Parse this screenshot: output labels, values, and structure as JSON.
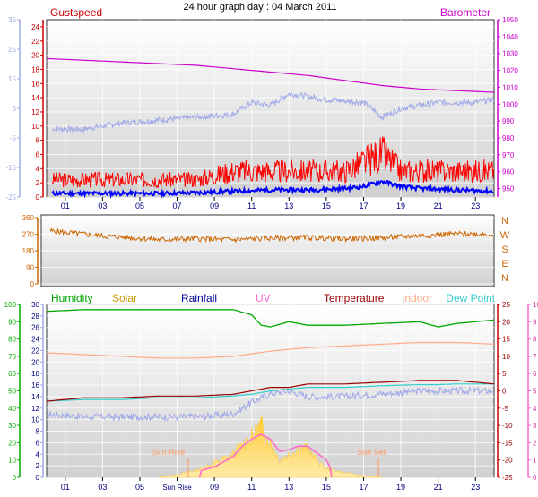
{
  "title": "24 hour graph day : 04 March 2011",
  "colors": {
    "gust": "#ff0000",
    "wind": "#0000ff",
    "barometer": "#cc00cc",
    "temperature_blue": "#a0a8e8",
    "direction": "#cc6600",
    "humidity": "#00aa00",
    "solar": "#ffcc33",
    "rainfall": "#000099",
    "uv": "#ff66cc",
    "temperature": "#990000",
    "indoor": "#ffaa88",
    "dew_point": "#33cccc",
    "axis_left": "#a0a8e8",
    "axis_red": "#cc0000",
    "sun_marker": "#ff9966"
  },
  "chart_data": [
    {
      "type": "line",
      "legend": [
        "Gustspeed",
        "Barometer"
      ],
      "x_ticks": [
        "01",
        "03",
        "05",
        "07",
        "09",
        "11",
        "13",
        "15",
        "17",
        "19",
        "21",
        "23"
      ],
      "left_outer_axis": {
        "ylim": [
          -25,
          35
        ],
        "ticks": [
          "35",
          "25",
          "15",
          "5",
          "-5",
          "-15",
          "-25"
        ]
      },
      "left_axis": {
        "ylim": [
          0,
          25
        ],
        "ticks": [
          "24",
          "22",
          "20",
          "18",
          "16",
          "14",
          "12",
          "10",
          "8",
          "6",
          "4",
          "2",
          "0"
        ]
      },
      "right_axis": {
        "ylim": [
          945,
          1050
        ],
        "ticks": [
          "1050",
          "1040",
          "1030",
          "1020",
          "1010",
          "1000",
          "990",
          "980",
          "970",
          "960",
          "950"
        ]
      },
      "series": [
        {
          "name": "Barometer",
          "axis": "right",
          "x": [
            0,
            2,
            4,
            6,
            8,
            10,
            12,
            14,
            16,
            18,
            20,
            22,
            24
          ],
          "values": [
            1027,
            1026,
            1025,
            1024,
            1023,
            1021,
            1019,
            1017,
            1014,
            1011,
            1009,
            1008,
            1007
          ]
        },
        {
          "name": "",
          "axis": "left_outer",
          "x": [
            0,
            2,
            4,
            6,
            8,
            10,
            11,
            12,
            13,
            15,
            17,
            18,
            19,
            21,
            23,
            24
          ],
          "values": [
            -2,
            -2,
            0,
            1,
            2,
            3,
            7,
            6,
            10,
            8,
            7,
            2,
            5,
            7,
            7,
            8
          ]
        },
        {
          "name": "Gustspeed",
          "axis": "left",
          "x": [
            0,
            2,
            4,
            6,
            8,
            10,
            12,
            14,
            16,
            17,
            18,
            19,
            20,
            22,
            24
          ],
          "values": [
            2,
            2,
            2,
            2,
            2,
            3,
            3,
            3,
            3,
            4,
            5,
            3,
            3,
            3,
            3
          ]
        },
        {
          "name": "",
          "axis": "left",
          "x": [
            0,
            2,
            4,
            6,
            8,
            10,
            12,
            14,
            16,
            17,
            18,
            19,
            20,
            22,
            24
          ],
          "values": [
            0.5,
            0.5,
            0.5,
            0.5,
            0.6,
            0.8,
            1,
            1,
            1.2,
            1.5,
            2.2,
            1.5,
            1.2,
            1,
            0.8
          ]
        }
      ]
    },
    {
      "type": "line",
      "x_ticks": [],
      "left_axis": {
        "ylim": [
          0,
          360
        ],
        "ticks": [
          "360",
          "270",
          "180",
          "90",
          "0"
        ]
      },
      "right_labels": [
        "N",
        "W",
        "S",
        "E",
        "N"
      ],
      "series": [
        {
          "name": "",
          "x": [
            0,
            1,
            2,
            3,
            4,
            6,
            8,
            10,
            12,
            14,
            16,
            18,
            20,
            22,
            24
          ],
          "values": [
            290,
            280,
            270,
            260,
            255,
            240,
            245,
            240,
            248,
            252,
            245,
            250,
            262,
            272,
            270
          ]
        }
      ]
    },
    {
      "type": "line",
      "legend": [
        "Humidity",
        "Solar",
        "Rainfall",
        "UV",
        "Temperature",
        "Indoor",
        "Dew Point"
      ],
      "x_ticks": [
        "01",
        "03",
        "05",
        "Sun Rise",
        "09",
        "11",
        "13",
        "15",
        "17",
        "19",
        "21",
        "23"
      ],
      "annotations": [
        "Sun Rise",
        "Sun Set"
      ],
      "left_outer_axis": {
        "ylim": [
          0,
          100
        ],
        "ticks": [
          "100",
          "90",
          "80",
          "70",
          "60",
          "50",
          "40",
          "30",
          "20",
          "10",
          "0"
        ]
      },
      "left_axis": {
        "ylim": [
          0,
          30
        ],
        "ticks": [
          "30",
          "28",
          "26",
          "24",
          "22",
          "20",
          "18",
          "16",
          "14",
          "12",
          "10",
          "8",
          "6",
          "4",
          "2",
          "0"
        ]
      },
      "right_axis": {
        "ylim": [
          -25,
          25
        ],
        "ticks": [
          "25",
          "20",
          "15",
          "10",
          "5",
          "0",
          "-5",
          "-10",
          "-15",
          "-20",
          "-25"
        ]
      },
      "right_outer_axis": {
        "ylim": [
          0,
          10
        ],
        "ticks": [
          "10",
          "9",
          "8",
          "7",
          "6",
          "5",
          "4",
          "3",
          "2",
          "1",
          "0"
        ]
      },
      "series": [
        {
          "name": "Humidity",
          "axis": "left_outer",
          "x": [
            0,
            2,
            4,
            6,
            8,
            9,
            10,
            11,
            11.5,
            12,
            13,
            14,
            16,
            18,
            20,
            21,
            22,
            23,
            24
          ],
          "values": [
            96,
            97,
            97,
            97,
            97,
            97,
            97,
            94,
            88,
            87,
            90,
            88,
            88,
            89,
            90,
            87,
            89,
            90,
            91
          ]
        },
        {
          "name": "Indoor",
          "axis": "right",
          "x": [
            0,
            2,
            4,
            6,
            8,
            10,
            12,
            14,
            16,
            18,
            20,
            22,
            24
          ],
          "values": [
            11,
            10.5,
            10,
            9.5,
            9.5,
            10,
            11.5,
            12.5,
            13,
            13.5,
            14,
            14,
            13.5
          ]
        },
        {
          "name": "Temperature",
          "axis": "right",
          "x": [
            0,
            2,
            4,
            6,
            8,
            10,
            11,
            12,
            13,
            14,
            16,
            18,
            20,
            21,
            22,
            23,
            24
          ],
          "values": [
            -3,
            -2,
            -2,
            -1.5,
            -1.5,
            -1,
            0,
            1,
            1,
            2,
            2,
            2.5,
            3,
            3,
            3,
            2.5,
            2
          ]
        },
        {
          "name": "Dew Point",
          "axis": "right",
          "x": [
            0,
            2,
            4,
            6,
            8,
            10,
            11,
            12,
            13,
            14,
            16,
            18,
            20,
            21,
            22,
            23,
            24
          ],
          "values": [
            -3,
            -2.5,
            -2.5,
            -2,
            -2,
            -1.5,
            -1,
            0,
            0.5,
            1,
            1,
            1.5,
            1.8,
            1.8,
            2,
            2,
            2
          ]
        },
        {
          "name": "",
          "axis": "left",
          "x": [
            0,
            2,
            4,
            6,
            8,
            10,
            11,
            12,
            13,
            14,
            16,
            18,
            20,
            21,
            22,
            23,
            24
          ],
          "values": [
            11,
            10.5,
            10.5,
            10.5,
            10.5,
            11,
            13,
            14.5,
            15,
            14,
            14,
            14.5,
            15,
            15,
            15,
            15,
            15
          ]
        },
        {
          "name": "Solar",
          "axis": "left",
          "x": [
            6,
            7,
            8,
            9,
            10,
            10.5,
            11,
            11.5,
            12,
            12.5,
            13,
            13.5,
            14,
            14.5,
            15,
            16,
            17,
            18
          ],
          "values": [
            0,
            0.5,
            1.2,
            2.5,
            4,
            5.5,
            7,
            9,
            6,
            3,
            4,
            5,
            5,
            3,
            1.5,
            0.8,
            0.3,
            0
          ]
        },
        {
          "name": "UV",
          "axis": "right_outer",
          "x": [
            8.2,
            8.3,
            9,
            10,
            10.5,
            11,
            11.5,
            12,
            12.5,
            13,
            13.5,
            14,
            14.5,
            15,
            15.2,
            15.3
          ],
          "values": [
            0,
            0.4,
            0.6,
            1.2,
            1.8,
            2.2,
            2.5,
            2.2,
            1.5,
            1.6,
            1.8,
            1.8,
            1.4,
            1.0,
            0.6,
            0
          ]
        }
      ]
    }
  ]
}
